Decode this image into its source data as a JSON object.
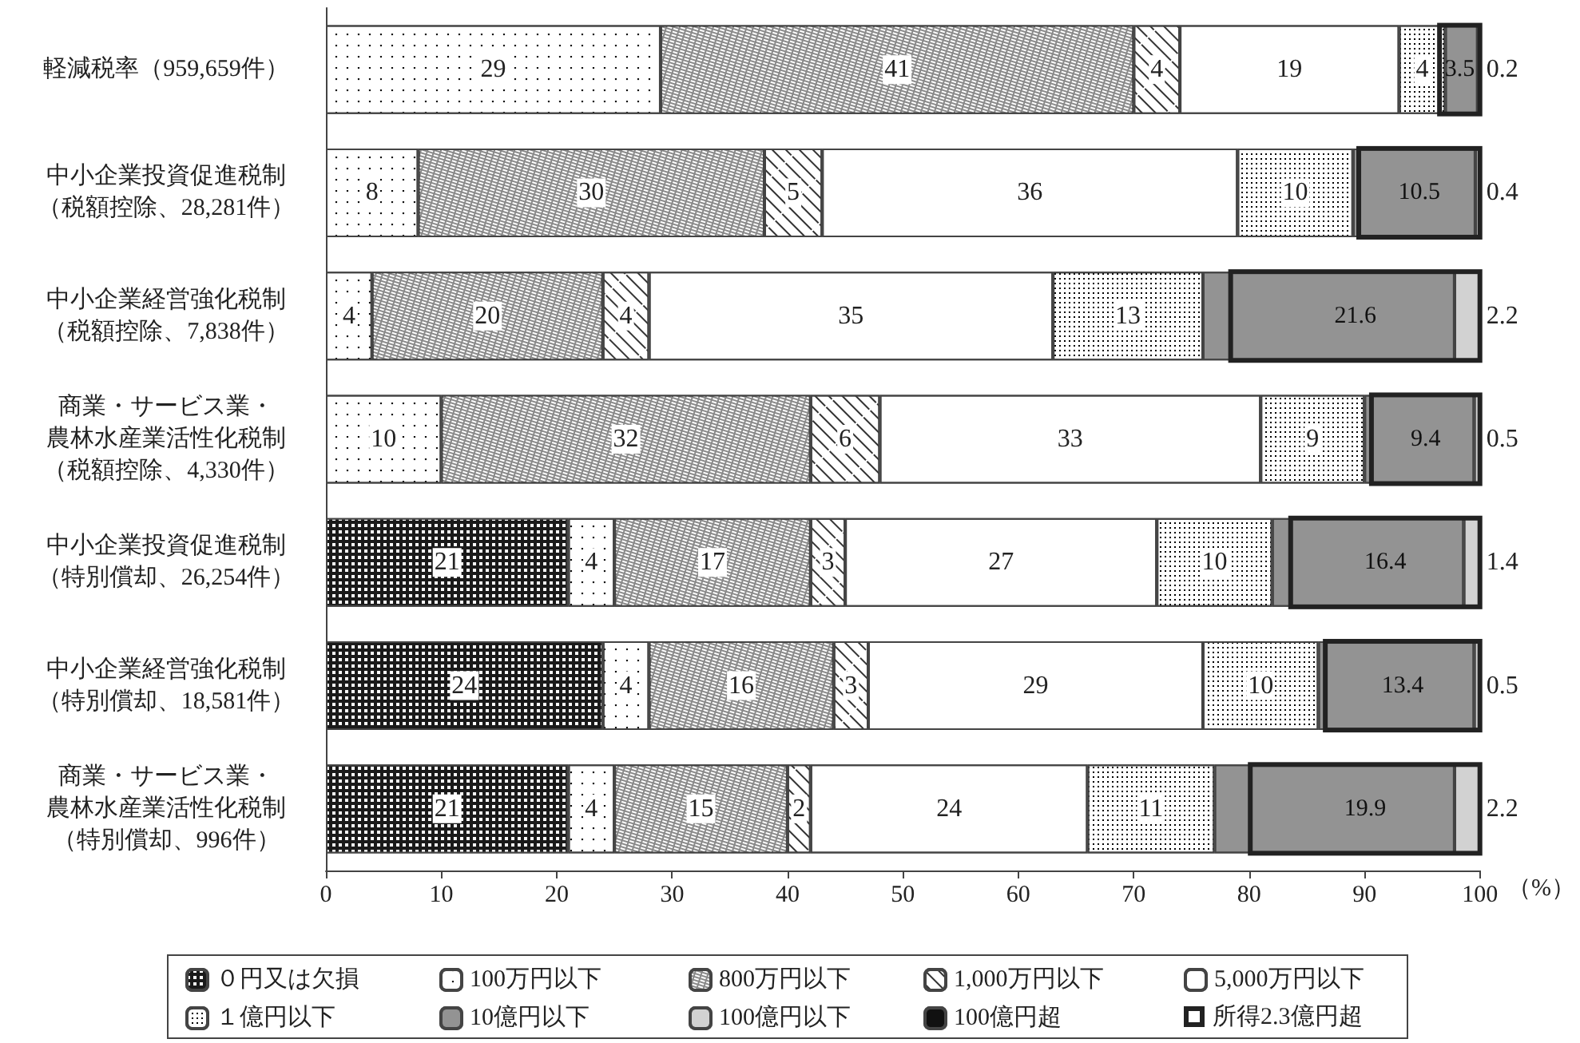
{
  "chart_data": {
    "type": "bar",
    "orientation": "horizontal",
    "stacked": true,
    "categories": [
      "軽減税率（959,659件）",
      "中小企業投資促進税制（税額控除、28,281件）",
      "中小企業経営強化税制（税額控除、7,838件）",
      "商業・サービス業・農林水産業活性化税制（税額控除、4,330件）",
      "中小企業投資促進税制（特別償却、26,254件）",
      "中小企業経営強化税制（特別償却、18,581件）",
      "商業・サービス業・農林水産業活性化税制（特別償却、996件）"
    ],
    "xlabel": "（%）",
    "xlim": [
      0,
      100
    ],
    "xticks": [
      0,
      10,
      20,
      30,
      40,
      50,
      60,
      70,
      80,
      90,
      100
    ],
    "grid": false,
    "legend": "bottom",
    "series": [
      {
        "name": "０円又は欠損",
        "color": "#1a1a1a",
        "values": [
          null,
          null,
          null,
          null,
          21,
          24,
          21
        ],
        "value_labels": [
          null,
          null,
          null,
          null,
          "21",
          "24",
          "21"
        ]
      },
      {
        "name": "100万円以下",
        "color": "#ffffff",
        "values": [
          29,
          8,
          4,
          10,
          4,
          4,
          4
        ],
        "value_labels": [
          "29",
          "8",
          "4",
          "10",
          "4",
          "4",
          "4"
        ]
      },
      {
        "name": "800万円以下",
        "color": "#8a8a8a",
        "values": [
          41,
          30,
          20,
          32,
          17,
          16,
          15
        ],
        "value_labels": [
          "41",
          "30",
          "20",
          "32",
          "17",
          "16",
          "15"
        ]
      },
      {
        "name": "1,000万円以下",
        "color": "#ffffff",
        "values": [
          4,
          5,
          4,
          6,
          3,
          3,
          2
        ],
        "value_labels": [
          "4",
          "5",
          "4",
          "6",
          "3",
          "3",
          "2"
        ]
      },
      {
        "name": "5,000万円以下",
        "color": "#ffffff",
        "values": [
          19,
          36,
          35,
          33,
          27,
          29,
          24
        ],
        "value_labels": [
          "19",
          "36",
          "35",
          "33",
          "27",
          "29",
          "24"
        ]
      },
      {
        "name": "１億円以下",
        "color": "#ffffff",
        "values": [
          4,
          10,
          13,
          9,
          10,
          10,
          11
        ],
        "value_labels": [
          "4",
          "10",
          "13",
          "9",
          "10",
          "10",
          "11"
        ]
      },
      {
        "name": "10億円以下",
        "color": "#939393",
        "values": [
          2.8,
          10.6,
          21.8,
          9.5,
          16.6,
          13.5,
          20.8
        ],
        "value_labels": [
          null,
          null,
          null,
          null,
          null,
          null,
          null
        ]
      },
      {
        "name": "100億円以下",
        "color": "#d2d2d2",
        "values": [
          0.2,
          0.4,
          2.2,
          0.5,
          1.4,
          0.5,
          2.2
        ],
        "value_labels": [
          "0.2",
          "0.4",
          "2.2",
          "0.5",
          "1.4",
          "0.5",
          "2.2"
        ]
      },
      {
        "name": "100億円超",
        "color": "#111111",
        "values": [
          null,
          null,
          null,
          null,
          null,
          null,
          null
        ],
        "value_labels": [
          null,
          null,
          null,
          null,
          null,
          null,
          null
        ]
      }
    ],
    "annotations": [
      "3.5",
      "10.5",
      "21.6",
      "9.4",
      "16.4",
      "13.4",
      "19.9",
      "所得2.3億円超"
    ]
  }
}
